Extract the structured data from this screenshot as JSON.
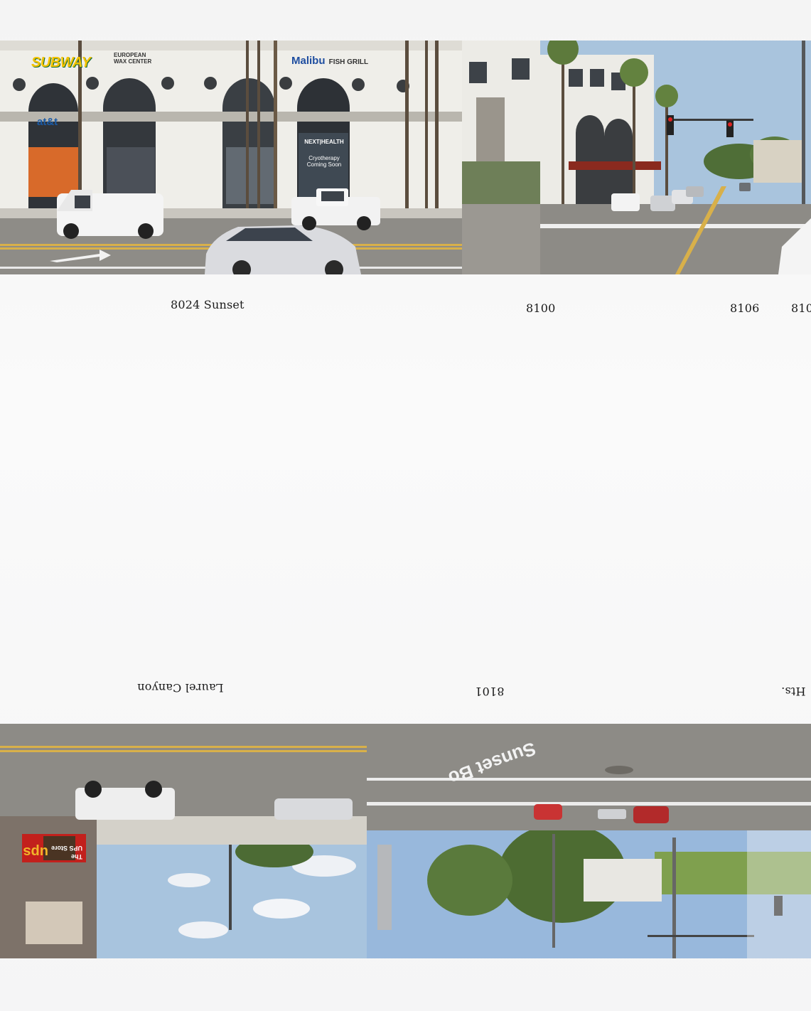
{
  "top_labels": {
    "address_8024": "8024 Sunset",
    "address_8100": "8100",
    "address_8106": "8106",
    "address_810": "810"
  },
  "bottom_labels": {
    "laurel_canyon": "Laurel Canyon",
    "address_8101": "8101",
    "hts": "Hts."
  },
  "signs": {
    "subway": "SUBWAY",
    "european_wax_line1": "EUROPEAN",
    "european_wax_line2": "WAX CENTER",
    "malibu": "Malibu",
    "fish_grill": "FISH GRILL",
    "att": "at&t",
    "next_health": "NEXT|HEALTH",
    "cryo_line1": "Cryotherapy",
    "cryo_line2": "Coming Soon",
    "ups": "ups",
    "ups_store_line1": "The",
    "ups_store_line2": "UPS Store",
    "sunset_street": "Sunset Bo"
  },
  "colors": {
    "sky": "#a9c4dd",
    "building": "#ecebe6",
    "road": "#8d8b86",
    "lane_yellow": "#d8b04a"
  }
}
